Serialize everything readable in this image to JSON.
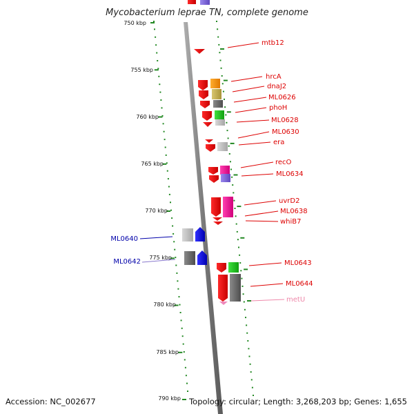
{
  "title": "Mycobacterium leprae TN, complete genome",
  "footer": {
    "accession": "Accession: NC_002677",
    "topology": "Topology: circular; Length: 3,268,203 bp; Genes: 1,655"
  },
  "ticks": [
    "750 kbp",
    "755 kbp",
    "760 kbp",
    "765 kbp",
    "770 kbp",
    "775 kbp",
    "780 kbp",
    "785 kbp",
    "790 kbp"
  ],
  "genes_right": [
    {
      "name": "mtb12",
      "color": "#dd0000"
    },
    {
      "name": "hrcA",
      "color": "#dd0000"
    },
    {
      "name": "dnaJ2",
      "color": "#dd0000"
    },
    {
      "name": "ML0626",
      "color": "#dd0000"
    },
    {
      "name": "phoH",
      "color": "#dd0000"
    },
    {
      "name": "ML0628",
      "color": "#dd0000"
    },
    {
      "name": "ML0630",
      "color": "#dd0000"
    },
    {
      "name": "era",
      "color": "#dd0000"
    },
    {
      "name": "recO",
      "color": "#dd0000"
    },
    {
      "name": "ML0634",
      "color": "#dd0000"
    },
    {
      "name": "uvrD2",
      "color": "#dd0000"
    },
    {
      "name": "ML0638",
      "color": "#dd0000"
    },
    {
      "name": "whiB7",
      "color": "#dd0000"
    },
    {
      "name": "ML0643",
      "color": "#dd0000"
    },
    {
      "name": "ML0644",
      "color": "#dd0000"
    },
    {
      "name": "metU",
      "color": "#ee88aa"
    }
  ],
  "genes_left": [
    {
      "name": "ML0640",
      "color": "#0000aa"
    },
    {
      "name": "ML0642",
      "color": "#0000aa"
    }
  ],
  "colors": {
    "backbone": "#8a8a8a",
    "dots": "#228822",
    "forward_gene": "#ee1111",
    "reverse_gene": "#1111ee"
  }
}
